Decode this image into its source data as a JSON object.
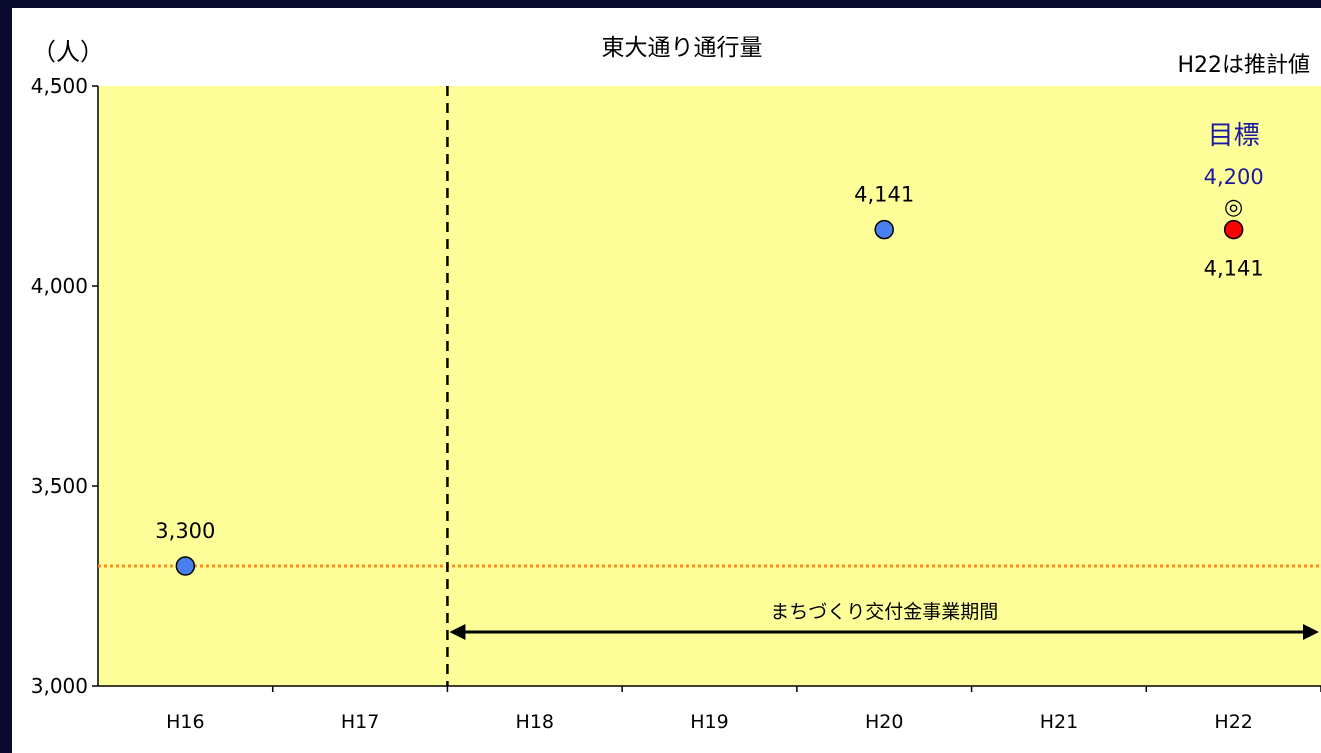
{
  "chart_data": {
    "type": "scatter",
    "title": "東大通り通行量",
    "ylabel": "（人）",
    "note": "H22は推計値",
    "categories": [
      "H16",
      "H17",
      "H18",
      "H19",
      "H20",
      "H21",
      "H22"
    ],
    "ylim": [
      3000,
      4500
    ],
    "yticks": [
      3000,
      3500,
      4000,
      4500
    ],
    "ytick_labels": [
      "3,000",
      "3,500",
      "4,000",
      "4,500"
    ],
    "points": [
      {
        "category": "H16",
        "value": 3300,
        "label": "3,300",
        "kind": "actual"
      },
      {
        "category": "H20",
        "value": 4141,
        "label": "4,141",
        "kind": "actual"
      },
      {
        "category": "H22",
        "value": 4141,
        "label": "4,141",
        "kind": "estimate"
      }
    ],
    "target": {
      "category": "H22",
      "value": 4200,
      "label": "4,200",
      "title": "目標",
      "marker": "◎"
    },
    "baseline": {
      "value": 3300,
      "style": "dotted"
    },
    "period": {
      "label": "まちづくり交付金事業期間",
      "from_boundary": "H17/H18",
      "to": "end"
    },
    "divider": {
      "at_boundary": "H17/H18",
      "style": "dashed"
    },
    "colors": {
      "plot_background": "#ffff99",
      "frame": "#0a0a2e",
      "actual_marker": "#4a7ff0",
      "estimate_marker": "#ff0000",
      "target_text": "#1a1aa0",
      "baseline": "#ff8c1a",
      "text": "#000000"
    }
  }
}
